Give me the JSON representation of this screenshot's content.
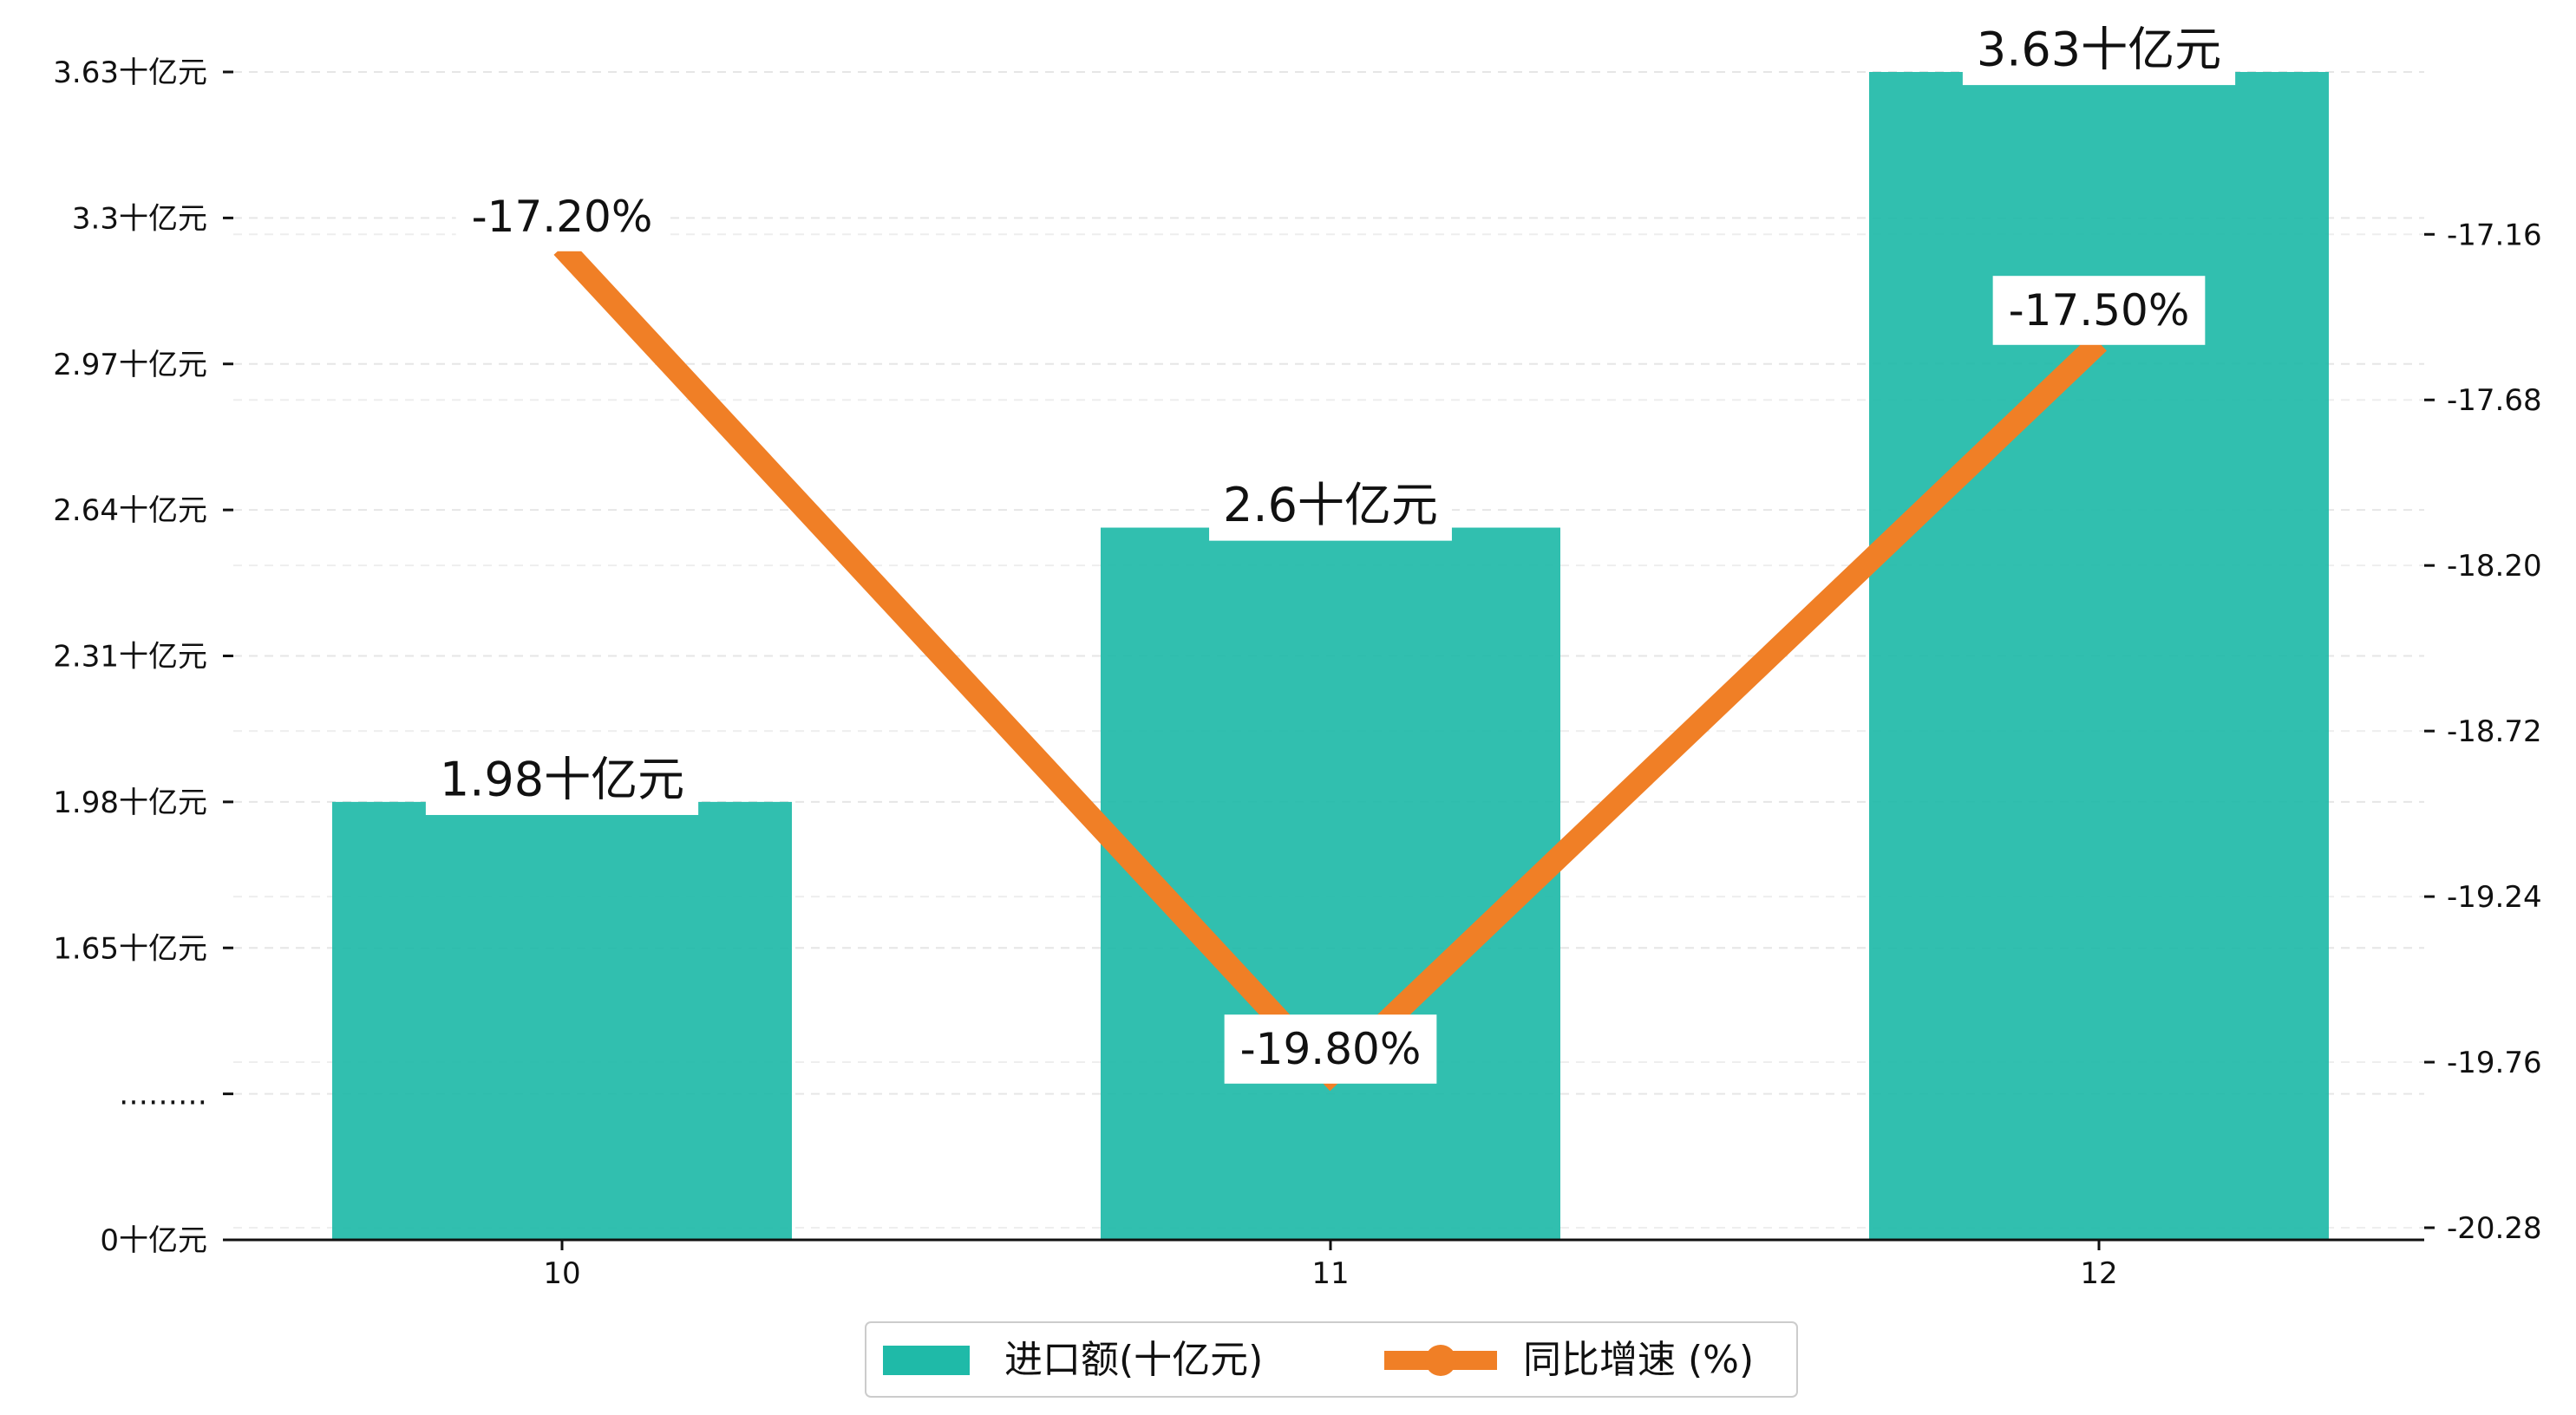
{
  "chart_data": {
    "type": "bar+line",
    "categories": [
      "10",
      "11",
      "12"
    ],
    "series": [
      {
        "name": "进口额(十亿元)",
        "type": "bar",
        "axis": "left",
        "values": [
          1.98,
          2.6,
          3.63
        ],
        "labels": [
          "1.98十亿元",
          "2.6十亿元",
          "3.63十亿元"
        ],
        "color": "#1fbaa8"
      },
      {
        "name": "同比增速 (%)",
        "type": "line",
        "axis": "right",
        "values": [
          -17.2,
          -19.8,
          -17.5
        ],
        "labels": [
          "-17.20%",
          "-19.80%",
          "-17.50%"
        ],
        "color": "#f07f26"
      }
    ],
    "left_axis": {
      "ticks": [
        {
          "value": 0,
          "label": "0十亿元"
        },
        {
          "value": 0.33,
          "label": "………"
        },
        {
          "value": 0.66,
          "label": "1.65十亿元"
        },
        {
          "value": 0.99,
          "label": "1.98十亿元"
        },
        {
          "value": 1.32,
          "label": "2.31十亿元"
        },
        {
          "value": 1.65,
          "label": "2.64十亿元"
        },
        {
          "value": 1.98,
          "label": "2.97十亿元"
        },
        {
          "value": 2.31,
          "label": "3.3十亿元"
        },
        {
          "value": 2.64,
          "label": "3.63十亿元"
        }
      ],
      "broken_axis": true,
      "break_at": 1.65
    },
    "right_axis": {
      "ylim": [
        -20.28,
        -16.65
      ],
      "ticks": [
        -20.28,
        -19.76,
        -19.24,
        -18.72,
        -18.2,
        -17.68,
        -17.16
      ]
    },
    "grid": true,
    "legend_position": "bottom-center"
  }
}
